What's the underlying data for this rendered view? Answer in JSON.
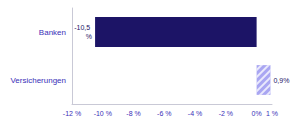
{
  "chart_data": {
    "type": "bar",
    "orientation": "horizontal",
    "categories": [
      "Banken",
      "Versicherungen"
    ],
    "values": [
      -10.5,
      0.9
    ],
    "value_labels": [
      "-10,5 %",
      "0,9%"
    ],
    "colors": [
      "#1c1466",
      "#a9a6f2"
    ],
    "data_labels": true,
    "xlim": [
      -12,
      1
    ],
    "xticks": [
      {
        "value": -12,
        "label": "-12 %"
      },
      {
        "value": -10,
        "label": "-10 %"
      },
      {
        "value": -8,
        "label": "-8 %"
      },
      {
        "value": -6,
        "label": "-6 %"
      },
      {
        "value": -4,
        "label": "-4 %"
      },
      {
        "value": -2,
        "label": "-2 %"
      },
      {
        "value": 0,
        "label": "0%"
      },
      {
        "value": 1,
        "label": "1 %"
      }
    ],
    "grid": false
  }
}
